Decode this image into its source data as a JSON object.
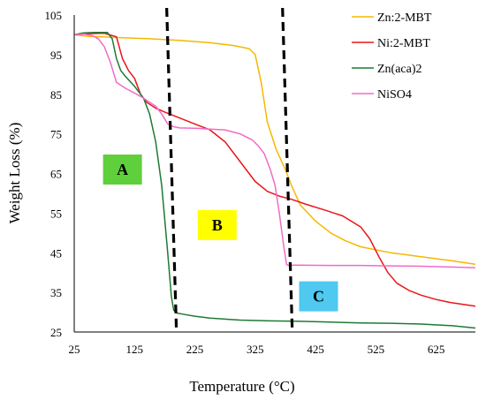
{
  "chart_data": {
    "type": "line",
    "xlabel": "Temperature (°C)",
    "ylabel": "Weight Loss (%)",
    "xlim": [
      25,
      690
    ],
    "ylim": [
      25,
      105
    ],
    "x_ticks": [
      25,
      125,
      225,
      325,
      425,
      525,
      625
    ],
    "y_ticks": [
      25,
      35,
      45,
      55,
      65,
      75,
      85,
      95,
      105
    ],
    "grid": false,
    "legend_position": "top-right",
    "series": [
      {
        "name": "Zn:2-MBT",
        "color": "#f5b800",
        "x": [
          25,
          50,
          100,
          150,
          200,
          250,
          290,
          315,
          325,
          335,
          345,
          360,
          375,
          385,
          400,
          425,
          450,
          475,
          500,
          550,
          600,
          650,
          690
        ],
        "y": [
          100,
          99.6,
          99.3,
          99.0,
          98.6,
          98.0,
          97.3,
          96.5,
          95,
          88,
          78,
          71,
          66,
          62,
          57,
          53,
          50,
          48,
          46.5,
          45,
          44,
          43,
          42.1
        ]
      },
      {
        "name": "Ni:2-MBT",
        "color": "#e8161b",
        "x": [
          25,
          50,
          75,
          95,
          105,
          115,
          125,
          135,
          145,
          160,
          175,
          200,
          225,
          250,
          275,
          300,
          325,
          345,
          365,
          385,
          410,
          440,
          470,
          500,
          515,
          530,
          545,
          560,
          580,
          600,
          625,
          650,
          690
        ],
        "y": [
          100,
          100.3,
          100.4,
          99.5,
          94,
          91,
          89,
          85,
          83,
          81.5,
          80.5,
          79,
          77.5,
          76,
          73,
          68,
          63,
          60.5,
          59.3,
          58.5,
          57.2,
          55.8,
          54.3,
          51.5,
          48.5,
          44,
          40,
          37.3,
          35.5,
          34.3,
          33.2,
          32.4,
          31.5
        ]
      },
      {
        "name": "Zn(aca)2",
        "color": "#1d7a36",
        "x": [
          25,
          40,
          60,
          80,
          88,
          95,
          102,
          110,
          125,
          140,
          150,
          160,
          170,
          180,
          186,
          190,
          195,
          205,
          225,
          250,
          300,
          350,
          400,
          450,
          500,
          550,
          600,
          650,
          690
        ],
        "y": [
          100,
          100.5,
          100.6,
          100.6,
          99,
          94,
          91,
          89.5,
          87,
          84,
          80,
          73,
          62,
          45,
          34,
          30.5,
          29.8,
          29.5,
          29,
          28.5,
          28,
          27.8,
          27.7,
          27.5,
          27.3,
          27.2,
          27.0,
          26.6,
          26
        ]
      },
      {
        "name": "NiSO4",
        "color": "#f06bc8",
        "x": [
          25,
          40,
          55,
          65,
          75,
          85,
          95,
          110,
          125,
          140,
          150,
          160,
          170,
          180,
          190,
          200,
          225,
          250,
          275,
          300,
          320,
          330,
          340,
          350,
          358,
          365,
          372,
          377,
          380,
          390,
          450,
          500,
          550,
          600,
          650,
          690
        ],
        "y": [
          100,
          100.2,
          99.8,
          99,
          97,
          93,
          88,
          86.5,
          85.3,
          84,
          83,
          82,
          80,
          77.5,
          76.8,
          76.5,
          76.4,
          76.2,
          76,
          75,
          73.5,
          72,
          70,
          66,
          62,
          55,
          47,
          42,
          41.8,
          41.9,
          41.8,
          41.8,
          41.7,
          41.6,
          41.4,
          41.2
        ]
      }
    ],
    "divider_temperatures": [
      190,
      382
    ],
    "regions": [
      {
        "label": "A",
        "color": "#5fcf3c",
        "x": 105,
        "y": 66
      },
      {
        "label": "B",
        "color": "#ffff00",
        "x": 262,
        "y": 52
      },
      {
        "label": "C",
        "color": "#4fc9ef",
        "x": 430,
        "y": 34
      }
    ]
  }
}
